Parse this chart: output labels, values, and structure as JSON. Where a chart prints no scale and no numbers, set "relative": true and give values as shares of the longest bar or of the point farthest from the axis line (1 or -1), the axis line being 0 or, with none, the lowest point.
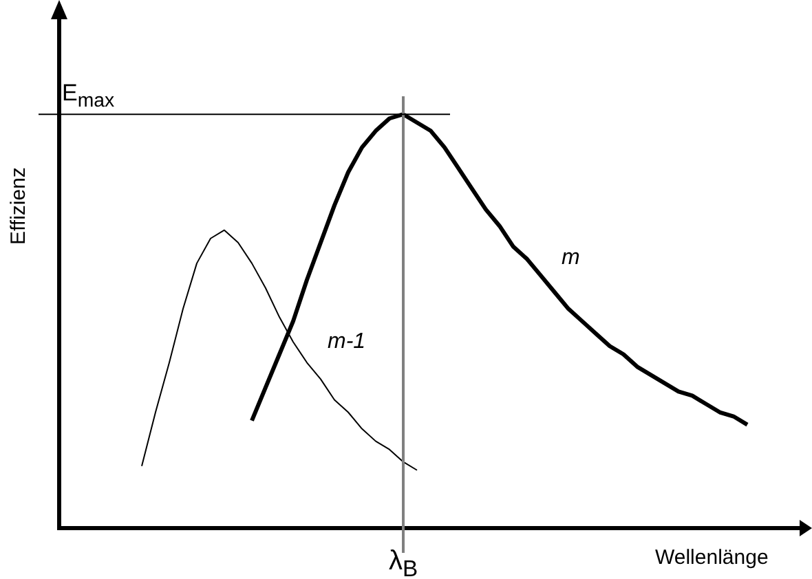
{
  "chart_data": {
    "type": "line",
    "xlabel": "Wellenlänge",
    "ylabel": "Effizienz",
    "relative": true,
    "marker": "none",
    "categories": [
      null,
      null,
      null,
      null,
      null,
      null,
      null,
      null,
      null,
      null,
      null,
      null,
      null,
      null,
      null,
      null,
      null,
      null,
      null,
      null,
      null,
      null,
      null,
      null,
      null,
      null,
      null,
      null,
      null,
      null,
      null,
      null,
      null,
      null,
      null,
      null,
      null,
      null,
      null,
      null,
      null,
      null,
      null,
      null,
      null,
      null,
      null,
      null,
      null,
      null,
      null,
      null,
      null,
      null,
      null
    ],
    "series": [
      {
        "name": "m-1",
        "color": "#000000",
        "values": [
          null,
          null,
          null,
          null,
          null,
          null,
          0.15,
          0.28,
          0.4,
          0.53,
          0.64,
          0.7,
          0.72,
          0.69,
          0.64,
          0.58,
          0.51,
          0.45,
          0.4,
          0.36,
          0.31,
          0.28,
          0.24,
          0.21,
          0.19,
          0.16,
          0.14,
          null,
          null,
          null,
          null,
          null,
          null,
          null,
          null,
          null,
          null,
          null,
          null,
          null,
          null,
          null,
          null,
          null,
          null,
          null,
          null,
          null,
          null,
          null,
          null,
          null,
          null,
          null,
          null
        ]
      },
      {
        "name": "m",
        "color": "#000000",
        "values": [
          null,
          null,
          null,
          null,
          null,
          null,
          null,
          null,
          null,
          null,
          null,
          null,
          null,
          null,
          0.26,
          0.34,
          0.42,
          0.5,
          0.6,
          0.69,
          0.78,
          0.86,
          0.92,
          0.96,
          0.99,
          1,
          0.98,
          0.96,
          0.92,
          0.87,
          0.82,
          0.77,
          0.73,
          0.68,
          0.65,
          0.61,
          0.57,
          0.53,
          0.5,
          0.47,
          0.44,
          0.42,
          0.39,
          0.37,
          0.35,
          0.33,
          0.32,
          0.3,
          0.28,
          0.27,
          0.25,
          null,
          null,
          null,
          null
        ]
      }
    ],
    "ref_lines": [
      {
        "axis": "y",
        "value": 1,
        "label": "E$_{max}$",
        "color": "#000000"
      }
    ],
    "annotations": [
      "λ$_{B}$"
    ]
  }
}
